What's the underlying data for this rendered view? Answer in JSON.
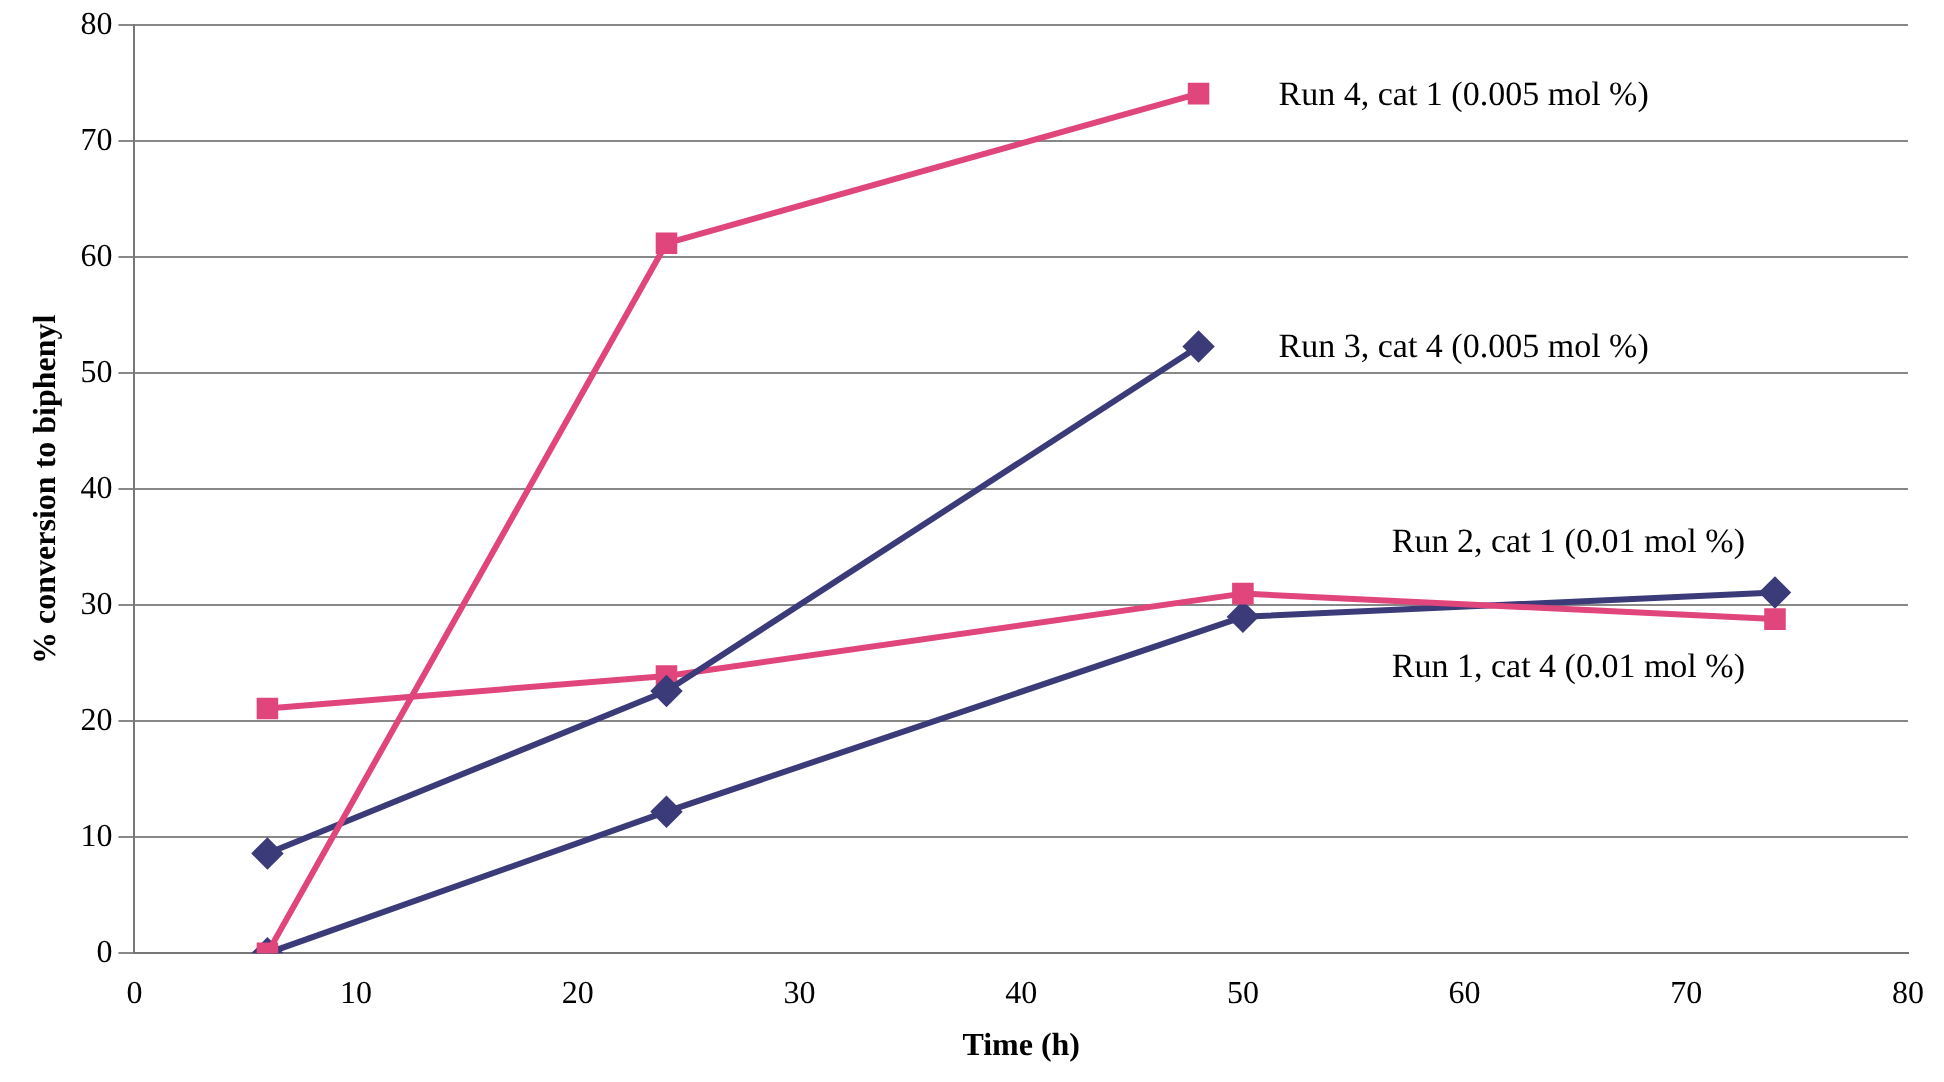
{
  "chart_data": {
    "type": "line",
    "xlabel": "Time (h)",
    "ylabel": "% conversion to biphenyl",
    "xlim": [
      0,
      80
    ],
    "xticks": [
      0,
      10,
      20,
      30,
      40,
      50,
      60,
      70,
      80
    ],
    "ylim": [
      0,
      80
    ],
    "yticks": [
      0,
      10,
      20,
      30,
      40,
      50,
      60,
      70,
      80
    ],
    "grid": "y",
    "legend": false,
    "series": [
      {
        "name": "Run 4, cat 1 (0.005 mol %)",
        "color": "#e0457b",
        "marker": "square",
        "x": [
          6,
          24,
          48
        ],
        "values": [
          0,
          61.2,
          74.1
        ]
      },
      {
        "name": "Run 3, cat 4 (0.005 mol %)",
        "color": "#3b3b7a",
        "marker": "diamond",
        "x": [
          6,
          24,
          48
        ],
        "values": [
          8.6,
          22.6,
          52.3
        ]
      },
      {
        "name": "Run 2, cat 1 (0.01 mol %)",
        "color": "#e0457b",
        "marker": "square",
        "x": [
          6,
          24,
          50,
          74
        ],
        "values": [
          21.1,
          23.9,
          31,
          28.8
        ]
      },
      {
        "name": "Run 1, cat 4 (0.01 mol %)",
        "color": "#3b3b7a",
        "marker": "diamond",
        "x": [
          6,
          24,
          50,
          74
        ],
        "values": [
          0,
          12.2,
          29,
          31.1
        ]
      }
    ]
  }
}
